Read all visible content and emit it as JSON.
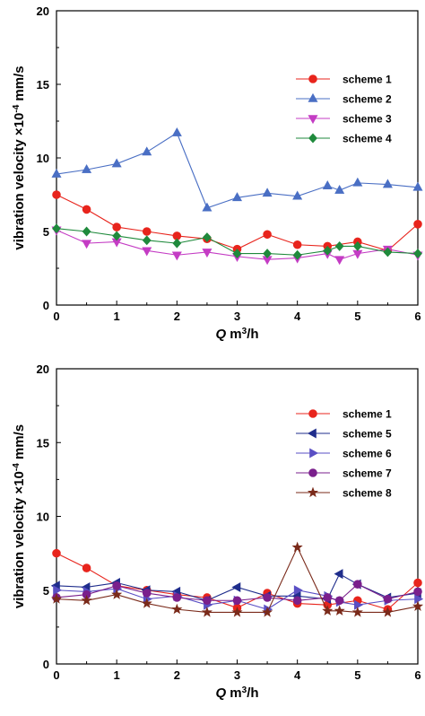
{
  "chart_data": [
    {
      "type": "line",
      "ylabel_main": "vibration velocity",
      "ylabel_factor": "×10",
      "ylabel_exp": "-4",
      "ylabel_unit": " mm/s",
      "xlabel_var": "Q",
      "xlabel_unit_a": "m",
      "xlabel_unit_sup": "3",
      "xlabel_unit_b": "/h",
      "xlim": [
        0,
        6
      ],
      "ylim": [
        0,
        20
      ],
      "xticks": [
        "0",
        "1",
        "2",
        "3",
        "4",
        "5",
        "6"
      ],
      "yticks": [
        "0",
        "5",
        "10",
        "15",
        "20"
      ],
      "legend_position": "top-right",
      "grid": false,
      "series": [
        {
          "name": "scheme  1",
          "color": "#e8241c",
          "marker": "circle",
          "x": [
            0,
            0.5,
            1,
            1.5,
            2,
            2.5,
            3,
            3.5,
            4,
            4.5,
            5,
            5.5,
            6
          ],
          "y": [
            7.5,
            6.5,
            5.3,
            5.0,
            4.7,
            4.5,
            3.8,
            4.8,
            4.1,
            4.0,
            4.3,
            3.7,
            5.5
          ]
        },
        {
          "name": "scheme  2",
          "color": "#4a6fc4",
          "marker": "triangle-up",
          "x": [
            0,
            0.5,
            1,
            1.5,
            2,
            2.5,
            3,
            3.5,
            4,
            4.5,
            4.7,
            5,
            5.5,
            6
          ],
          "y": [
            8.9,
            9.2,
            9.6,
            10.4,
            11.7,
            6.6,
            7.3,
            7.6,
            7.4,
            8.1,
            7.8,
            8.3,
            8.2,
            8.0
          ]
        },
        {
          "name": "scheme  3",
          "color": "#c43cc4",
          "marker": "triangle-down",
          "x": [
            0,
            0.5,
            1,
            1.5,
            2,
            2.5,
            3,
            3.5,
            4,
            4.5,
            4.7,
            5,
            5.5,
            6
          ],
          "y": [
            5.1,
            4.2,
            4.3,
            3.7,
            3.4,
            3.6,
            3.3,
            3.1,
            3.2,
            3.5,
            3.1,
            3.5,
            3.8,
            3.4
          ]
        },
        {
          "name": "scheme  4",
          "color": "#1f8a3c",
          "marker": "diamond",
          "x": [
            0,
            0.5,
            1,
            1.5,
            2,
            2.5,
            3,
            3.5,
            4,
            4.5,
            4.7,
            5,
            5.5,
            6
          ],
          "y": [
            5.2,
            5.0,
            4.7,
            4.4,
            4.2,
            4.6,
            3.5,
            3.5,
            3.4,
            3.7,
            4.0,
            4.0,
            3.6,
            3.5
          ]
        }
      ]
    },
    {
      "type": "line",
      "ylabel_main": "vibration velocity",
      "ylabel_factor": "×10",
      "ylabel_exp": "-4",
      "ylabel_unit": " mm/s",
      "xlabel_var": "Q",
      "xlabel_unit_a": "m",
      "xlabel_unit_sup": "3",
      "xlabel_unit_b": "/h",
      "xlim": [
        0,
        6
      ],
      "ylim": [
        0,
        20
      ],
      "xticks": [
        "0",
        "1",
        "2",
        "3",
        "4",
        "5",
        "6"
      ],
      "yticks": [
        "0",
        "5",
        "10",
        "15",
        "20"
      ],
      "legend_position": "top-right",
      "grid": false,
      "series": [
        {
          "name": "scheme  1",
          "color": "#e8241c",
          "marker": "circle",
          "x": [
            0,
            0.5,
            1,
            1.5,
            2,
            2.5,
            3,
            3.5,
            4,
            4.5,
            5,
            5.5,
            6
          ],
          "y": [
            7.5,
            6.5,
            5.3,
            5.0,
            4.7,
            4.5,
            3.8,
            4.8,
            4.1,
            4.0,
            4.3,
            3.7,
            5.5
          ]
        },
        {
          "name": "scheme  5",
          "color": "#1f2d8c",
          "marker": "triangle-left",
          "x": [
            0,
            0.5,
            1,
            1.5,
            2,
            2.5,
            3,
            3.5,
            4,
            4.5,
            4.7,
            5,
            5.5,
            6
          ],
          "y": [
            5.3,
            5.2,
            5.5,
            5.0,
            4.9,
            4.3,
            5.2,
            4.6,
            4.6,
            4.4,
            6.1,
            5.4,
            4.5,
            4.8
          ]
        },
        {
          "name": "scheme  6",
          "color": "#5a4fc4",
          "marker": "triangle-right",
          "x": [
            0,
            0.5,
            1,
            1.5,
            2,
            2.5,
            3,
            3.5,
            4,
            4.5,
            4.7,
            5,
            5.5,
            6
          ],
          "y": [
            5.0,
            4.9,
            5.1,
            4.4,
            4.6,
            4.0,
            4.3,
            3.7,
            5.0,
            4.6,
            4.2,
            4.0,
            4.3,
            4.4
          ]
        },
        {
          "name": "scheme  7",
          "color": "#7a1f8c",
          "marker": "circle",
          "x": [
            0,
            0.5,
            1,
            1.5,
            2,
            2.5,
            3,
            3.5,
            4,
            4.5,
            4.7,
            5,
            5.5,
            6
          ],
          "y": [
            4.5,
            4.7,
            5.3,
            4.8,
            4.5,
            4.3,
            4.3,
            4.5,
            4.3,
            4.5,
            4.3,
            5.4,
            4.4,
            4.9
          ]
        },
        {
          "name": "scheme  8",
          "color": "#7a2a1a",
          "marker": "star",
          "x": [
            0,
            0.5,
            1,
            1.5,
            2,
            2.5,
            3,
            3.5,
            4,
            4.5,
            4.7,
            5,
            5.5,
            6
          ],
          "y": [
            4.4,
            4.3,
            4.7,
            4.1,
            3.7,
            3.5,
            3.5,
            3.5,
            7.9,
            3.6,
            3.6,
            3.5,
            3.5,
            3.9
          ]
        }
      ]
    }
  ]
}
